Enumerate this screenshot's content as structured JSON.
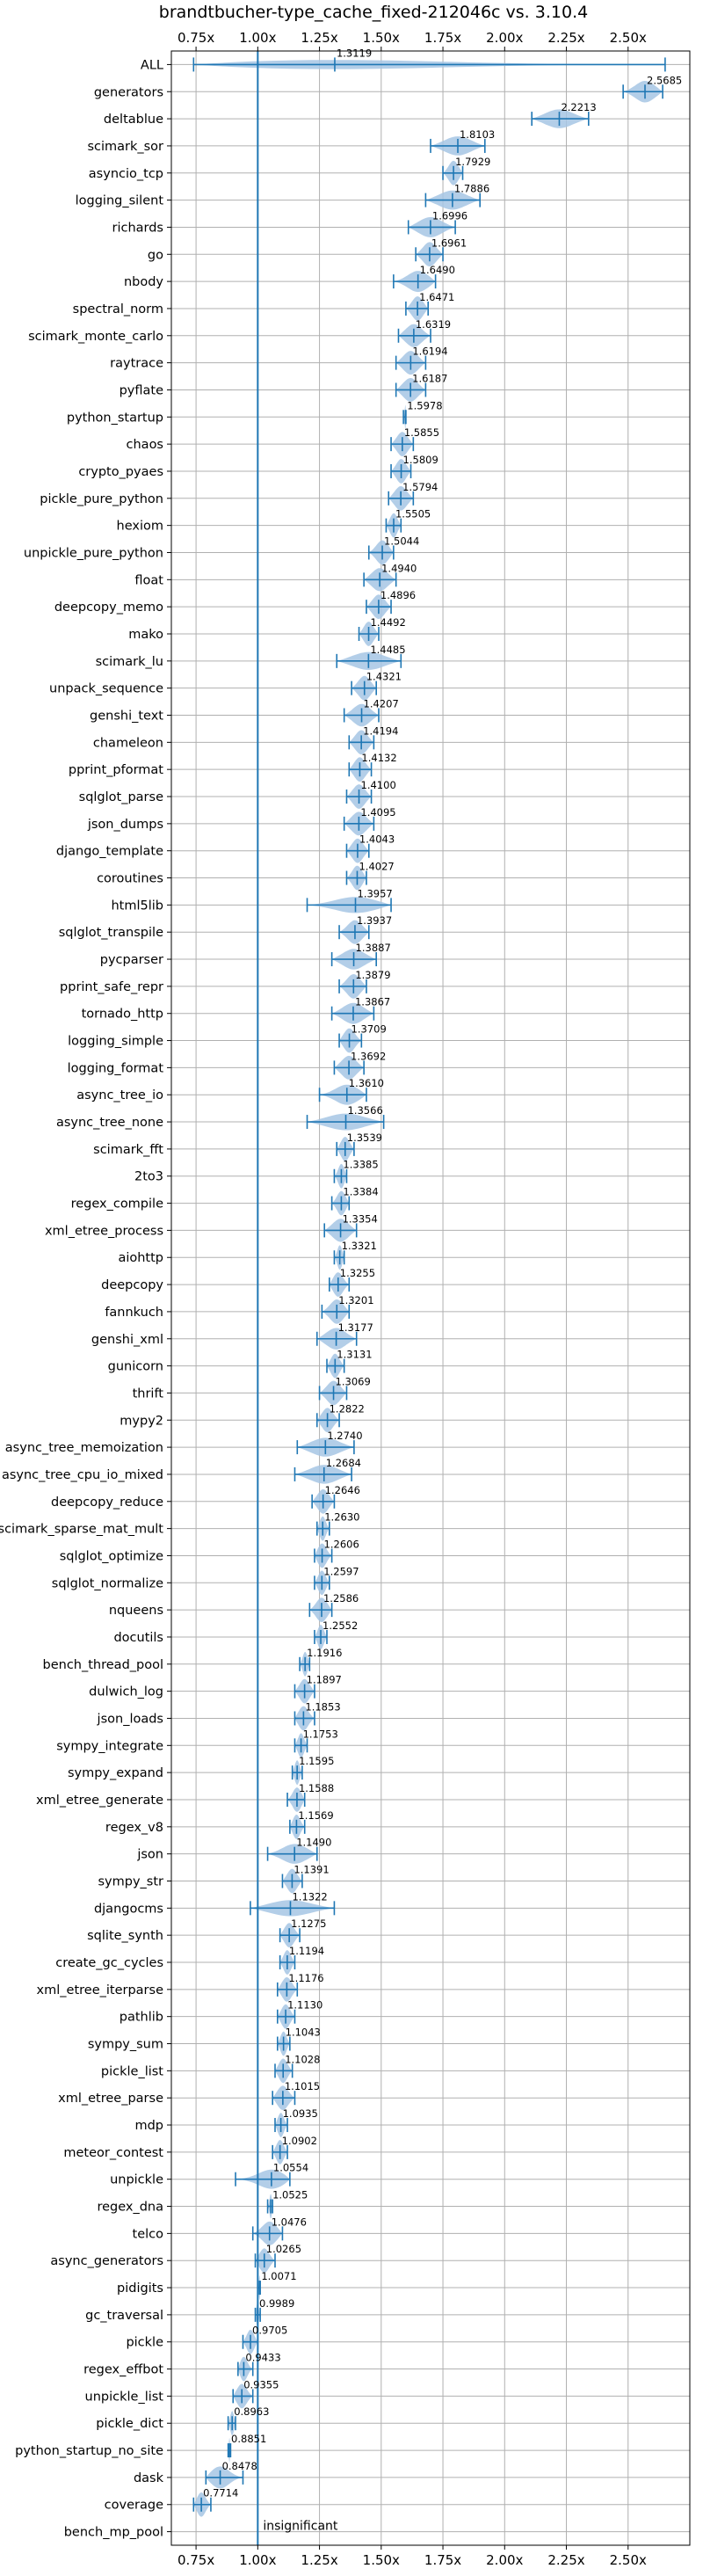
{
  "chart_data": {
    "type": "violin",
    "title": "brandtbucher-type_cache_fixed-212046c vs. 3.10.4",
    "xlim": [
      0.65,
      2.75
    ],
    "xticks": [
      "0.75x",
      "1.00x",
      "1.25x",
      "1.50x",
      "1.75x",
      "2.00x",
      "2.25x",
      "2.50x"
    ],
    "xtick_values": [
      0.75,
      1.0,
      1.25,
      1.5,
      1.75,
      2.0,
      2.25,
      2.5
    ],
    "reference_line": 1.0,
    "grid": true,
    "colors": {
      "accent": "#1f77b4",
      "violin": "#a6c6e4",
      "grid": "#b0b0b0"
    },
    "annotation": "insignificant",
    "categories": [
      "ALL",
      "generators",
      "deltablue",
      "scimark_sor",
      "asyncio_tcp",
      "logging_silent",
      "richards",
      "go",
      "nbody",
      "spectral_norm",
      "scimark_monte_carlo",
      "raytrace",
      "pyflate",
      "python_startup",
      "chaos",
      "crypto_pyaes",
      "pickle_pure_python",
      "hexiom",
      "unpickle_pure_python",
      "float",
      "deepcopy_memo",
      "mako",
      "scimark_lu",
      "unpack_sequence",
      "genshi_text",
      "chameleon",
      "pprint_pformat",
      "sqlglot_parse",
      "json_dumps",
      "django_template",
      "coroutines",
      "html5lib",
      "sqlglot_transpile",
      "pycparser",
      "pprint_safe_repr",
      "tornado_http",
      "logging_simple",
      "logging_format",
      "async_tree_io",
      "async_tree_none",
      "scimark_fft",
      "2to3",
      "regex_compile",
      "xml_etree_process",
      "aiohttp",
      "deepcopy",
      "fannkuch",
      "genshi_xml",
      "gunicorn",
      "thrift",
      "mypy2",
      "async_tree_memoization",
      "async_tree_cpu_io_mixed",
      "deepcopy_reduce",
      "scimark_sparse_mat_mult",
      "sqlglot_optimize",
      "sqlglot_normalize",
      "nqueens",
      "docutils",
      "bench_thread_pool",
      "dulwich_log",
      "json_loads",
      "sympy_integrate",
      "sympy_expand",
      "xml_etree_generate",
      "regex_v8",
      "json",
      "sympy_str",
      "djangocms",
      "sqlite_synth",
      "create_gc_cycles",
      "xml_etree_iterparse",
      "pathlib",
      "sympy_sum",
      "pickle_list",
      "xml_etree_parse",
      "mdp",
      "meteor_contest",
      "unpickle",
      "regex_dna",
      "telco",
      "async_generators",
      "pidigits",
      "gc_traversal",
      "pickle",
      "regex_effbot",
      "unpickle_list",
      "pickle_dict",
      "python_startup_no_site",
      "dask",
      "coverage",
      "bench_mp_pool"
    ],
    "value_labels": [
      "1.3119",
      "2.5685",
      "2.2213",
      "1.8103",
      "1.7929",
      "1.7886",
      "1.6996",
      "1.6961",
      "1.6490",
      "1.6471",
      "1.6319",
      "1.6194",
      "1.6187",
      "1.5978",
      "1.5855",
      "1.5809",
      "1.5794",
      "1.5505",
      "1.5044",
      "1.4940",
      "1.4896",
      "1.4492",
      "1.4485",
      "1.4321",
      "1.4207",
      "1.4194",
      "1.4132",
      "1.4100",
      "1.4095",
      "1.4043",
      "1.4027",
      "1.3957",
      "1.3937",
      "1.3887",
      "1.3879",
      "1.3867",
      "1.3709",
      "1.3692",
      "1.3610",
      "1.3566",
      "1.3539",
      "1.3385",
      "1.3384",
      "1.3354",
      "1.3321",
      "1.3255",
      "1.3201",
      "1.3177",
      "1.3131",
      "1.3069",
      "1.2822",
      "1.2740",
      "1.2684",
      "1.2646",
      "1.2630",
      "1.2606",
      "1.2597",
      "1.2586",
      "1.2552",
      "1.1916",
      "1.1897",
      "1.1853",
      "1.1753",
      "1.1595",
      "1.1588",
      "1.1569",
      "1.1490",
      "1.1391",
      "1.1322",
      "1.1275",
      "1.1194",
      "1.1176",
      "1.1130",
      "1.1043",
      "1.1028",
      "1.1015",
      "1.0935",
      "1.0902",
      "1.0554",
      "1.0525",
      "1.0476",
      "1.0265",
      "1.0071",
      "0.9989",
      "0.9705",
      "0.9433",
      "0.9355",
      "0.8963",
      "0.8851",
      "0.8478",
      "0.7714",
      ""
    ],
    "values": [
      1.3119,
      2.5685,
      2.2213,
      1.8103,
      1.7929,
      1.7886,
      1.6996,
      1.6961,
      1.649,
      1.6471,
      1.6319,
      1.6194,
      1.6187,
      1.5978,
      1.5855,
      1.5809,
      1.5794,
      1.5505,
      1.5044,
      1.494,
      1.4896,
      1.4492,
      1.4485,
      1.4321,
      1.4207,
      1.4194,
      1.4132,
      1.41,
      1.4095,
      1.4043,
      1.4027,
      1.3957,
      1.3937,
      1.3887,
      1.3879,
      1.3867,
      1.3709,
      1.3692,
      1.361,
      1.3566,
      1.3539,
      1.3385,
      1.3384,
      1.3354,
      1.3321,
      1.3255,
      1.3201,
      1.3177,
      1.3131,
      1.3069,
      1.2822,
      1.274,
      1.2684,
      1.2646,
      1.263,
      1.2606,
      1.2597,
      1.2586,
      1.2552,
      1.1916,
      1.1897,
      1.1853,
      1.1753,
      1.1595,
      1.1588,
      1.1569,
      1.149,
      1.1391,
      1.1322,
      1.1275,
      1.1194,
      1.1176,
      1.113,
      1.1043,
      1.1028,
      1.1015,
      1.0935,
      1.0902,
      1.0554,
      1.0525,
      1.0476,
      1.0265,
      1.0071,
      0.9989,
      0.9705,
      0.9433,
      0.9355,
      0.8963,
      0.8851,
      0.8478,
      0.7714,
      null
    ],
    "ranges": [
      [
        0.74,
        2.65
      ],
      [
        2.48,
        2.64
      ],
      [
        2.11,
        2.34
      ],
      [
        1.7,
        1.92
      ],
      [
        1.75,
        1.83
      ],
      [
        1.68,
        1.9
      ],
      [
        1.61,
        1.8
      ],
      [
        1.64,
        1.75
      ],
      [
        1.55,
        1.72
      ],
      [
        1.6,
        1.69
      ],
      [
        1.57,
        1.7
      ],
      [
        1.56,
        1.68
      ],
      [
        1.56,
        1.68
      ],
      [
        1.59,
        1.6
      ],
      [
        1.54,
        1.63
      ],
      [
        1.54,
        1.62
      ],
      [
        1.53,
        1.63
      ],
      [
        1.52,
        1.58
      ],
      [
        1.45,
        1.55
      ],
      [
        1.43,
        1.56
      ],
      [
        1.44,
        1.54
      ],
      [
        1.41,
        1.49
      ],
      [
        1.32,
        1.58
      ],
      [
        1.38,
        1.48
      ],
      [
        1.35,
        1.49
      ],
      [
        1.37,
        1.47
      ],
      [
        1.37,
        1.46
      ],
      [
        1.36,
        1.46
      ],
      [
        1.35,
        1.47
      ],
      [
        1.36,
        1.45
      ],
      [
        1.36,
        1.44
      ],
      [
        1.2,
        1.54
      ],
      [
        1.33,
        1.45
      ],
      [
        1.3,
        1.48
      ],
      [
        1.33,
        1.44
      ],
      [
        1.3,
        1.47
      ],
      [
        1.33,
        1.42
      ],
      [
        1.31,
        1.43
      ],
      [
        1.25,
        1.44
      ],
      [
        1.2,
        1.51
      ],
      [
        1.32,
        1.39
      ],
      [
        1.31,
        1.36
      ],
      [
        1.3,
        1.37
      ],
      [
        1.27,
        1.4
      ],
      [
        1.31,
        1.35
      ],
      [
        1.29,
        1.37
      ],
      [
        1.26,
        1.37
      ],
      [
        1.24,
        1.4
      ],
      [
        1.28,
        1.35
      ],
      [
        1.25,
        1.36
      ],
      [
        1.24,
        1.33
      ],
      [
        1.16,
        1.39
      ],
      [
        1.15,
        1.38
      ],
      [
        1.22,
        1.31
      ],
      [
        1.24,
        1.29
      ],
      [
        1.23,
        1.3
      ],
      [
        1.23,
        1.29
      ],
      [
        1.21,
        1.3
      ],
      [
        1.23,
        1.28
      ],
      [
        1.17,
        1.21
      ],
      [
        1.15,
        1.23
      ],
      [
        1.15,
        1.23
      ],
      [
        1.15,
        1.2
      ],
      [
        1.14,
        1.18
      ],
      [
        1.12,
        1.19
      ],
      [
        1.13,
        1.19
      ],
      [
        1.04,
        1.24
      ],
      [
        1.1,
        1.18
      ],
      [
        0.97,
        1.31
      ],
      [
        1.09,
        1.17
      ],
      [
        1.09,
        1.15
      ],
      [
        1.08,
        1.16
      ],
      [
        1.08,
        1.15
      ],
      [
        1.08,
        1.13
      ],
      [
        1.07,
        1.14
      ],
      [
        1.06,
        1.15
      ],
      [
        1.07,
        1.12
      ],
      [
        1.06,
        1.12
      ],
      [
        0.91,
        1.13
      ],
      [
        1.04,
        1.06
      ],
      [
        0.98,
        1.1
      ],
      [
        0.99,
        1.07
      ],
      [
        1.0,
        1.01
      ],
      [
        0.99,
        1.01
      ],
      [
        0.94,
        1.0
      ],
      [
        0.92,
        0.98
      ],
      [
        0.9,
        0.98
      ],
      [
        0.88,
        0.91
      ],
      [
        0.88,
        0.89
      ],
      [
        0.79,
        0.94
      ],
      [
        0.74,
        0.81
      ],
      [
        1.0,
        1.0
      ]
    ]
  }
}
